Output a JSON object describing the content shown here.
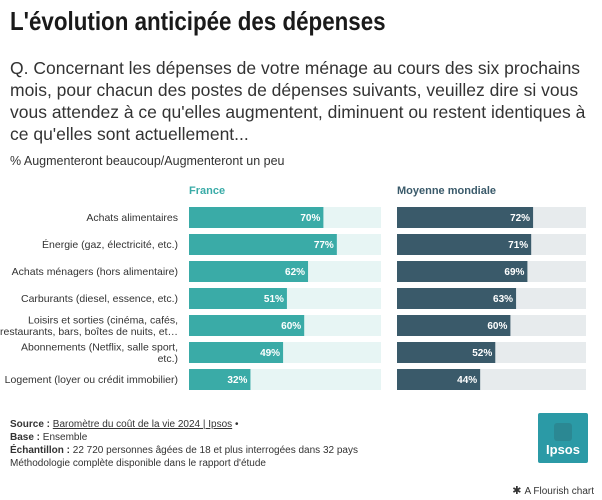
{
  "header": {
    "title": "L'évolution anticipée des dépenses",
    "question": "Q. Concernant les dépenses de votre ménage au cours des six prochains mois, pour chacun des postes de dépenses suivants, veuillez dire si vous vous attendez à ce qu'elles augmentent, diminuent ou restent identiques à ce qu'elles sont actuellement...",
    "subtitle": "% Augmenteront beaucoup/Augmenteront un peu"
  },
  "chart_data": {
    "type": "bar",
    "orientation": "horizontal",
    "categories": [
      "Achats alimentaires",
      "Énergie (gaz, électricité, etc.)",
      "Achats ménagers (hors alimentaire)",
      "Carburants (diesel, essence, etc.)",
      "Loisirs et sorties (cinéma, cafés, restaurants, bars, boîtes de nuits, et…",
      "Abonnements (Netflix, salle sport, etc.)",
      "Logement (loyer ou crédit immobilier)"
    ],
    "category_lines": [
      [
        "Achats alimentaires"
      ],
      [
        "Énergie (gaz, électricité, etc.)"
      ],
      [
        "Achats ménagers (hors alimentaire)"
      ],
      [
        "Carburants (diesel, essence, etc.)"
      ],
      [
        "Loisirs et sorties (cinéma, cafés,",
        "restaurants, bars, boîtes de nuits, et…"
      ],
      [
        "Abonnements (Netflix, salle sport,",
        "etc.)"
      ],
      [
        "Logement (loyer ou crédit immobilier)"
      ]
    ],
    "series": [
      {
        "name": "France",
        "color": "#3aaba7",
        "values": [
          70,
          77,
          62,
          51,
          60,
          49,
          32
        ]
      },
      {
        "name": "Moyenne mondiale",
        "color": "#3a5a6a",
        "values": [
          72,
          71,
          69,
          63,
          60,
          52,
          44
        ]
      }
    ],
    "value_suffix": "%",
    "xlim": [
      0,
      100
    ],
    "grid": false,
    "legend": "panel-titles"
  },
  "footer": {
    "source_label": "Source :",
    "source_text": "Baromètre du coût de la vie 2024 | Ipsos",
    "source_suffix": " •",
    "base_label": "Base :",
    "base_text": " Ensemble",
    "sample_label": "Échantillon :",
    "sample_text": " 22 720 personnes âgées de 18 et plus interrogées dans 32 pays",
    "method_text": "Méthodologie complète disponible dans le rapport d'étude"
  },
  "logo": {
    "text": "Ipsos"
  },
  "credit": {
    "text": "A Flourish chart"
  }
}
